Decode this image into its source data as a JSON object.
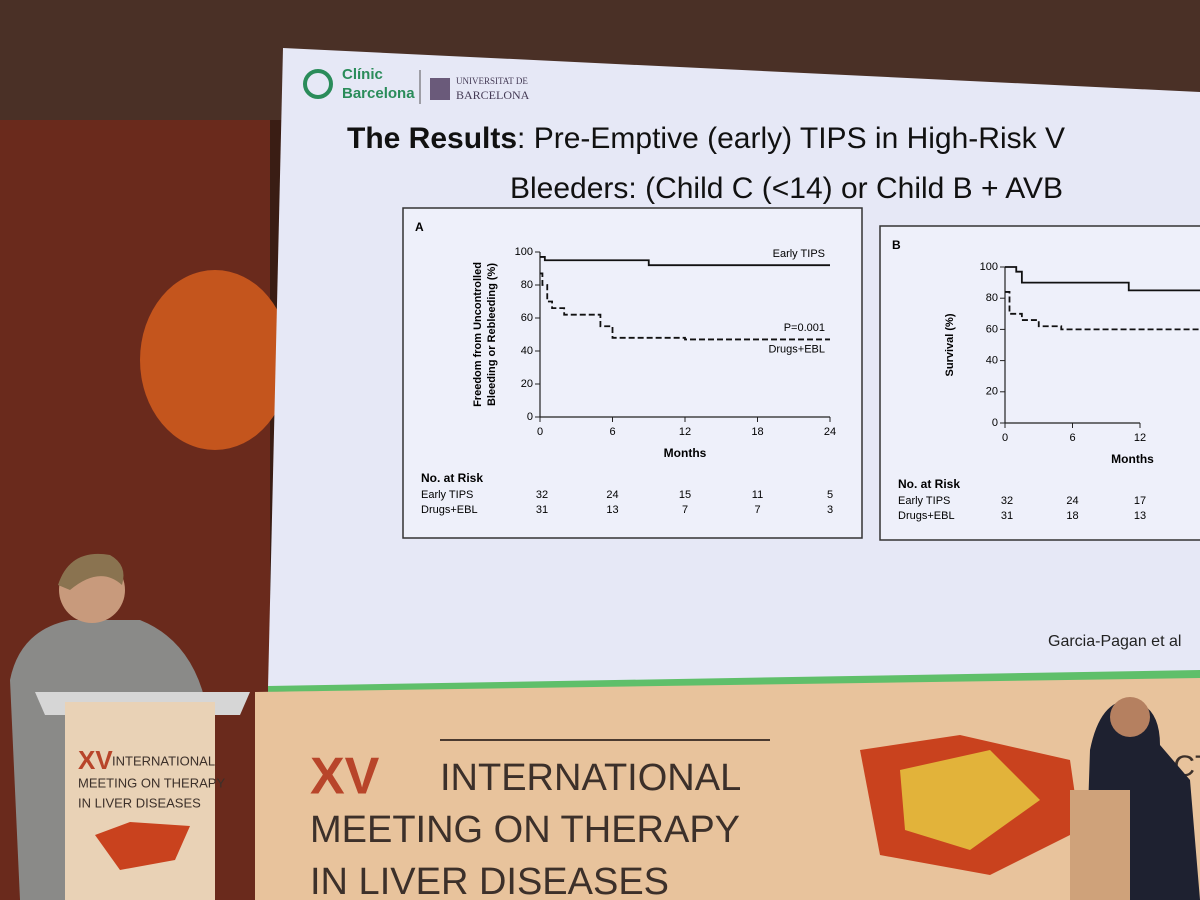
{
  "logos": {
    "clinic": [
      "Clínic",
      "Barcelona"
    ],
    "university": [
      "UNIVERSITAT DE",
      "BARCELONA"
    ]
  },
  "title": {
    "bold": "The Results",
    "rest": ": Pre-Emptive (early) TIPS in High-Risk V",
    "line2": "Bleeders: (Child C (<14) or Child B + AVB"
  },
  "chart_data": [
    {
      "type": "line",
      "panel": "A",
      "ylabel": [
        "Freedom from Uncontrolled",
        "Bleeding or Rebleeding (%)"
      ],
      "xlabel": "Months",
      "annotation": "P=0.001",
      "risk_title": "No. at Risk",
      "xlim": [
        0,
        24
      ],
      "xticks": [
        0,
        6,
        12,
        18,
        24
      ],
      "ylim": [
        0,
        100
      ],
      "yticks": [
        0,
        20,
        40,
        60,
        80,
        100
      ],
      "series": [
        {
          "name": "Early TIPS",
          "color": "#111111",
          "dashed": false,
          "x": [
            0,
            0.4,
            0.4,
            9,
            9,
            24
          ],
          "values": [
            97,
            97,
            95,
            95,
            92,
            92
          ],
          "risk": [
            32,
            24,
            15,
            11,
            5
          ]
        },
        {
          "name": "Drugs+EBL",
          "color": "#111111",
          "dashed": true,
          "x": [
            0,
            0.2,
            0.2,
            0.6,
            0.6,
            1,
            1,
            2,
            2,
            5,
            5,
            6,
            6,
            12,
            12,
            24
          ],
          "values": [
            87,
            87,
            80,
            80,
            70,
            70,
            66,
            66,
            62,
            62,
            55,
            55,
            48,
            48,
            47,
            47
          ],
          "risk": [
            31,
            13,
            7,
            7,
            3
          ]
        }
      ]
    },
    {
      "type": "line",
      "panel": "B",
      "ylabel": [
        "Survival (%)"
      ],
      "xlabel": "Months",
      "risk_title": "No. at Risk",
      "xlim": [
        0,
        24
      ],
      "xticks": [
        0,
        6,
        12
      ],
      "ylim": [
        0,
        100
      ],
      "yticks": [
        0,
        20,
        40,
        60,
        80,
        100
      ],
      "series": [
        {
          "name": "Early TIPS",
          "color": "#111111",
          "dashed": false,
          "x": [
            0,
            1,
            1,
            1.5,
            1.5,
            11,
            11,
            24
          ],
          "values": [
            100,
            100,
            97,
            97,
            90,
            90,
            85,
            85
          ],
          "risk": [
            32,
            24,
            17
          ]
        },
        {
          "name": "Drugs+EBL",
          "color": "#111111",
          "dashed": true,
          "x": [
            0,
            0.4,
            0.4,
            1.5,
            1.5,
            3,
            3,
            5,
            5,
            24
          ],
          "values": [
            84,
            84,
            70,
            70,
            66,
            66,
            62,
            62,
            60,
            60
          ],
          "risk": [
            31,
            18,
            13
          ]
        }
      ]
    }
  ],
  "citation": "Garcia-Pagan et al",
  "banner": {
    "number": "XV",
    "lines": [
      "INTERNATIONAL",
      "MEETING ON THERAPY",
      "IN LIVER DISEASES"
    ],
    "date": "OCT"
  },
  "podium": {
    "number": "XV",
    "lines": [
      "INTERNATIONAL",
      "MEETING ON THERAPY",
      "IN LIVER DISEASES"
    ]
  }
}
